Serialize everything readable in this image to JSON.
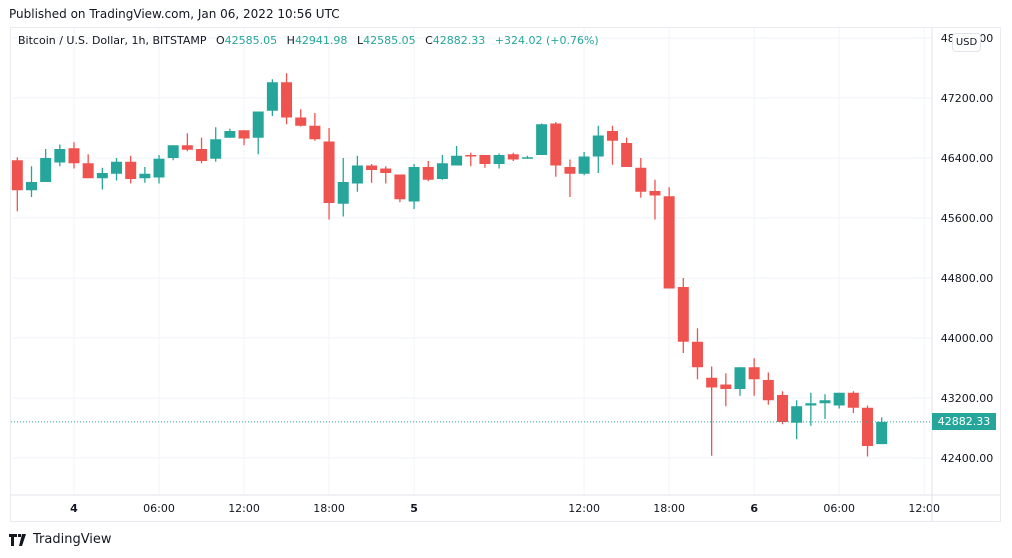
{
  "header": {
    "published": "Published on TradingView.com, Jan 06, 2022 10:56 UTC"
  },
  "legend": {
    "symbol": "Bitcoin / U.S. Dollar, 1h, BITSTAMP",
    "o_label": "O",
    "o_value": "42585.05",
    "h_label": "H",
    "h_value": "42941.98",
    "l_label": "L",
    "l_value": "42585.05",
    "c_label": "C",
    "c_value": "42882.33",
    "change": "+324.02 (+0.76%)"
  },
  "price_axis": {
    "currency": "USD",
    "current_price": "42882.33",
    "ticks": [
      "48000.00",
      "47200.00",
      "46400.00",
      "45600.00",
      "44800.00",
      "44000.00",
      "43200.00",
      "42400.00"
    ]
  },
  "time_axis": {
    "ticks": [
      "4",
      "06:00",
      "12:00",
      "18:00",
      "5",
      "12:00",
      "18:00",
      "6",
      "06:00",
      "12:00"
    ]
  },
  "footer": {
    "brand": "TradingView"
  },
  "colors": {
    "up": "#26a69a",
    "down": "#ef5350",
    "grid": "#f0f3fa",
    "text": "#131722"
  },
  "chart_data": {
    "type": "candlestick",
    "title": "Bitcoin / U.S. Dollar, 1h, BITSTAMP",
    "xlabel": "",
    "ylabel": "USD",
    "ylim": [
      41950,
      48130
    ],
    "grid": true,
    "y_ticks": [
      48000,
      47200,
      46400,
      45600,
      44800,
      44000,
      43200,
      42400
    ],
    "x_ticks": [
      {
        "label": "4",
        "hour": 0
      },
      {
        "label": "06:00",
        "hour": 6
      },
      {
        "label": "12:00",
        "hour": 12
      },
      {
        "label": "18:00",
        "hour": 18
      },
      {
        "label": "5",
        "hour": 24
      },
      {
        "label": "12:00",
        "hour": 36
      },
      {
        "label": "18:00",
        "hour": 42
      },
      {
        "label": "6",
        "hour": 48
      },
      {
        "label": "06:00",
        "hour": 54
      },
      {
        "label": "12:00",
        "hour": 60
      }
    ],
    "last_price": 42882.33,
    "candles": [
      {
        "h": -4,
        "o": 46370,
        "hi": 46410,
        "l": 45690,
        "c": 45970
      },
      {
        "h": -3,
        "o": 45970,
        "hi": 46290,
        "l": 45880,
        "c": 46080
      },
      {
        "h": -2,
        "o": 46080,
        "hi": 46520,
        "l": 46080,
        "c": 46400
      },
      {
        "h": -1,
        "o": 46340,
        "hi": 46580,
        "l": 46290,
        "c": 46520
      },
      {
        "h": 0,
        "o": 46530,
        "hi": 46610,
        "l": 46260,
        "c": 46330
      },
      {
        "h": 1,
        "o": 46330,
        "hi": 46450,
        "l": 46140,
        "c": 46130
      },
      {
        "h": 2,
        "o": 46130,
        "hi": 46270,
        "l": 45980,
        "c": 46200
      },
      {
        "h": 3,
        "o": 46190,
        "hi": 46400,
        "l": 46100,
        "c": 46350
      },
      {
        "h": 4,
        "o": 46350,
        "hi": 46430,
        "l": 46060,
        "c": 46120
      },
      {
        "h": 5,
        "o": 46130,
        "hi": 46280,
        "l": 46070,
        "c": 46190
      },
      {
        "h": 6,
        "o": 46140,
        "hi": 46440,
        "l": 46060,
        "c": 46390
      },
      {
        "h": 7,
        "o": 46400,
        "hi": 46570,
        "l": 46370,
        "c": 46570
      },
      {
        "h": 8,
        "o": 46570,
        "hi": 46730,
        "l": 46490,
        "c": 46510
      },
      {
        "h": 9,
        "o": 46520,
        "hi": 46670,
        "l": 46330,
        "c": 46360
      },
      {
        "h": 10,
        "o": 46390,
        "hi": 46810,
        "l": 46350,
        "c": 46650
      },
      {
        "h": 11,
        "o": 46670,
        "hi": 46790,
        "l": 46670,
        "c": 46760
      },
      {
        "h": 12,
        "o": 46770,
        "hi": 46770,
        "l": 46570,
        "c": 46660
      },
      {
        "h": 13,
        "o": 46670,
        "hi": 47010,
        "l": 46450,
        "c": 47020
      },
      {
        "h": 14,
        "o": 47030,
        "hi": 47450,
        "l": 46960,
        "c": 47410
      },
      {
        "h": 15,
        "o": 47410,
        "hi": 47530,
        "l": 46850,
        "c": 46940
      },
      {
        "h": 16,
        "o": 46940,
        "hi": 47050,
        "l": 46820,
        "c": 46830
      },
      {
        "h": 17,
        "o": 46830,
        "hi": 47000,
        "l": 46630,
        "c": 46650
      },
      {
        "h": 18,
        "o": 46620,
        "hi": 46800,
        "l": 45580,
        "c": 45800
      },
      {
        "h": 19,
        "o": 45790,
        "hi": 46400,
        "l": 45620,
        "c": 46080
      },
      {
        "h": 20,
        "o": 46060,
        "hi": 46430,
        "l": 45950,
        "c": 46300
      },
      {
        "h": 21,
        "o": 46300,
        "hi": 46320,
        "l": 46070,
        "c": 46240
      },
      {
        "h": 22,
        "o": 46260,
        "hi": 46290,
        "l": 46060,
        "c": 46200
      },
      {
        "h": 23,
        "o": 46180,
        "hi": 46180,
        "l": 45810,
        "c": 45850
      },
      {
        "h": 24,
        "o": 45820,
        "hi": 46320,
        "l": 45720,
        "c": 46280
      },
      {
        "h": 25,
        "o": 46280,
        "hi": 46360,
        "l": 46090,
        "c": 46110
      },
      {
        "h": 26,
        "o": 46120,
        "hi": 46440,
        "l": 46110,
        "c": 46330
      },
      {
        "h": 27,
        "o": 46300,
        "hi": 46560,
        "l": 46300,
        "c": 46430
      },
      {
        "h": 28,
        "o": 46440,
        "hi": 46470,
        "l": 46290,
        "c": 46430
      },
      {
        "h": 29,
        "o": 46440,
        "hi": 46440,
        "l": 46270,
        "c": 46320
      },
      {
        "h": 30,
        "o": 46320,
        "hi": 46460,
        "l": 46260,
        "c": 46440
      },
      {
        "h": 31,
        "o": 46450,
        "hi": 46470,
        "l": 46360,
        "c": 46380
      },
      {
        "h": 32,
        "o": 46390,
        "hi": 46430,
        "l": 46390,
        "c": 46410
      },
      {
        "h": 33,
        "o": 46440,
        "hi": 46860,
        "l": 46440,
        "c": 46850
      },
      {
        "h": 34,
        "o": 46860,
        "hi": 46880,
        "l": 46150,
        "c": 46300
      },
      {
        "h": 35,
        "o": 46280,
        "hi": 46380,
        "l": 45880,
        "c": 46190
      },
      {
        "h": 36,
        "o": 46190,
        "hi": 46480,
        "l": 46170,
        "c": 46420
      },
      {
        "h": 37,
        "o": 46420,
        "hi": 46830,
        "l": 46200,
        "c": 46700
      },
      {
        "h": 38,
        "o": 46760,
        "hi": 46830,
        "l": 46310,
        "c": 46630
      },
      {
        "h": 39,
        "o": 46600,
        "hi": 46670,
        "l": 46290,
        "c": 46280
      },
      {
        "h": 40,
        "o": 46270,
        "hi": 46400,
        "l": 45870,
        "c": 45950
      },
      {
        "h": 41,
        "o": 45960,
        "hi": 46110,
        "l": 45580,
        "c": 45900
      },
      {
        "h": 42,
        "o": 45890,
        "hi": 46010,
        "l": 44660,
        "c": 44660
      },
      {
        "h": 43,
        "o": 44680,
        "hi": 44800,
        "l": 43800,
        "c": 43950
      },
      {
        "h": 44,
        "o": 43950,
        "hi": 44130,
        "l": 43450,
        "c": 43610
      },
      {
        "h": 45,
        "o": 43470,
        "hi": 43620,
        "l": 42430,
        "c": 43340
      },
      {
        "h": 46,
        "o": 43380,
        "hi": 43530,
        "l": 43090,
        "c": 43320
      },
      {
        "h": 47,
        "o": 43320,
        "hi": 43610,
        "l": 43230,
        "c": 43610
      },
      {
        "h": 48,
        "o": 43610,
        "hi": 43730,
        "l": 43230,
        "c": 43450
      },
      {
        "h": 49,
        "o": 43440,
        "hi": 43540,
        "l": 43110,
        "c": 43170
      },
      {
        "h": 50,
        "o": 43240,
        "hi": 43290,
        "l": 42850,
        "c": 42880
      },
      {
        "h": 51,
        "o": 42870,
        "hi": 43170,
        "l": 42650,
        "c": 43090
      },
      {
        "h": 52,
        "o": 43100,
        "hi": 43270,
        "l": 42830,
        "c": 43130
      },
      {
        "h": 53,
        "o": 43130,
        "hi": 43250,
        "l": 42920,
        "c": 43170
      },
      {
        "h": 54,
        "o": 43100,
        "hi": 43270,
        "l": 43060,
        "c": 43270
      },
      {
        "h": 55,
        "o": 43270,
        "hi": 43290,
        "l": 43000,
        "c": 43070
      },
      {
        "h": 56,
        "o": 43070,
        "hi": 43100,
        "l": 42420,
        "c": 42560
      },
      {
        "h": 57,
        "o": 42585.05,
        "hi": 42941.98,
        "l": 42585.05,
        "c": 42882.33
      }
    ]
  }
}
